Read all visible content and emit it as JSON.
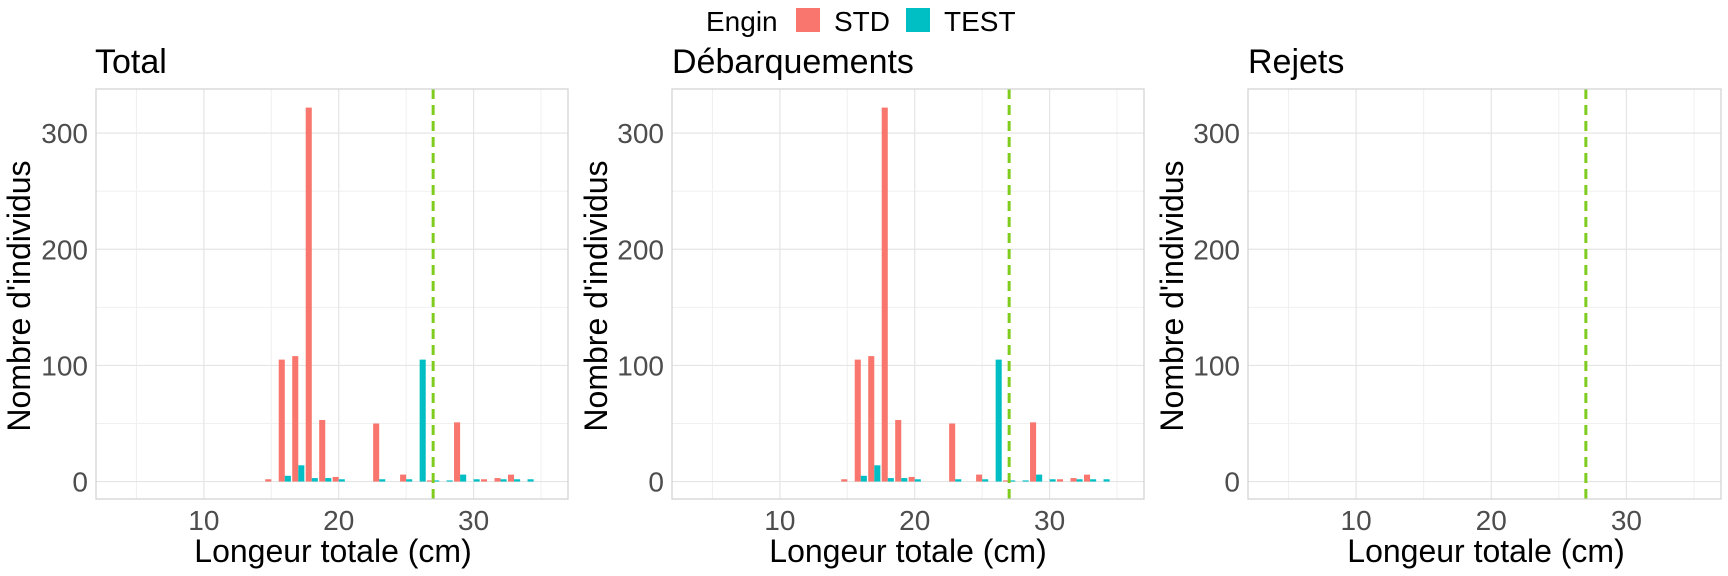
{
  "legend": {
    "title": "Engin",
    "entries": [
      {
        "name": "STD",
        "color": "#F8766D"
      },
      {
        "name": "TEST",
        "color": "#00BFC4"
      }
    ]
  },
  "reference_line": {
    "x": 27,
    "color": "#7FCC1E"
  },
  "chart_data": [
    {
      "type": "bar",
      "title": "Total",
      "xlabel": "Longeur totale (cm)",
      "ylabel": "Nombre d'individus",
      "xlim": [
        2,
        37
      ],
      "ylim": [
        -15,
        338
      ],
      "xticks": [
        10,
        20,
        30
      ],
      "yticks": [
        0,
        100,
        200,
        300
      ],
      "series": [
        {
          "name": "STD",
          "x": [
            15,
            16,
            17,
            18,
            19,
            20,
            23,
            25,
            27,
            29,
            31,
            32,
            33
          ],
          "values": [
            2,
            105,
            108,
            322,
            53,
            4,
            50,
            6,
            1,
            51,
            2,
            3,
            6
          ]
        },
        {
          "name": "TEST",
          "x": [
            16,
            17,
            18,
            19,
            20,
            23,
            25,
            26,
            27,
            28,
            29,
            30,
            32,
            33,
            34
          ],
          "values": [
            5,
            14,
            3,
            3,
            2,
            2,
            2,
            105,
            1,
            1,
            6,
            2,
            2,
            2,
            2
          ]
        }
      ]
    },
    {
      "type": "bar",
      "title": "Débarquements",
      "xlabel": "Longeur totale (cm)",
      "ylabel": "Nombre d'individus",
      "xlim": [
        2,
        37
      ],
      "ylim": [
        -15,
        338
      ],
      "xticks": [
        10,
        20,
        30
      ],
      "yticks": [
        0,
        100,
        200,
        300
      ],
      "series": [
        {
          "name": "STD",
          "x": [
            15,
            16,
            17,
            18,
            19,
            20,
            23,
            25,
            27,
            29,
            31,
            32,
            33
          ],
          "values": [
            2,
            105,
            108,
            322,
            53,
            4,
            50,
            6,
            1,
            51,
            2,
            3,
            6
          ]
        },
        {
          "name": "TEST",
          "x": [
            16,
            17,
            18,
            19,
            20,
            23,
            25,
            26,
            27,
            28,
            29,
            30,
            32,
            33,
            34
          ],
          "values": [
            5,
            14,
            3,
            3,
            2,
            2,
            2,
            105,
            1,
            1,
            6,
            2,
            2,
            2,
            2
          ]
        }
      ]
    },
    {
      "type": "bar",
      "title": "Rejets",
      "xlabel": "Longeur totale (cm)",
      "ylabel": "Nombre d'individus",
      "xlim": [
        2,
        37
      ],
      "ylim": [
        -15,
        338
      ],
      "xticks": [
        10,
        20,
        30
      ],
      "yticks": [
        0,
        100,
        200,
        300
      ],
      "series": [
        {
          "name": "STD",
          "x": [],
          "values": []
        },
        {
          "name": "TEST",
          "x": [],
          "values": []
        }
      ]
    }
  ]
}
